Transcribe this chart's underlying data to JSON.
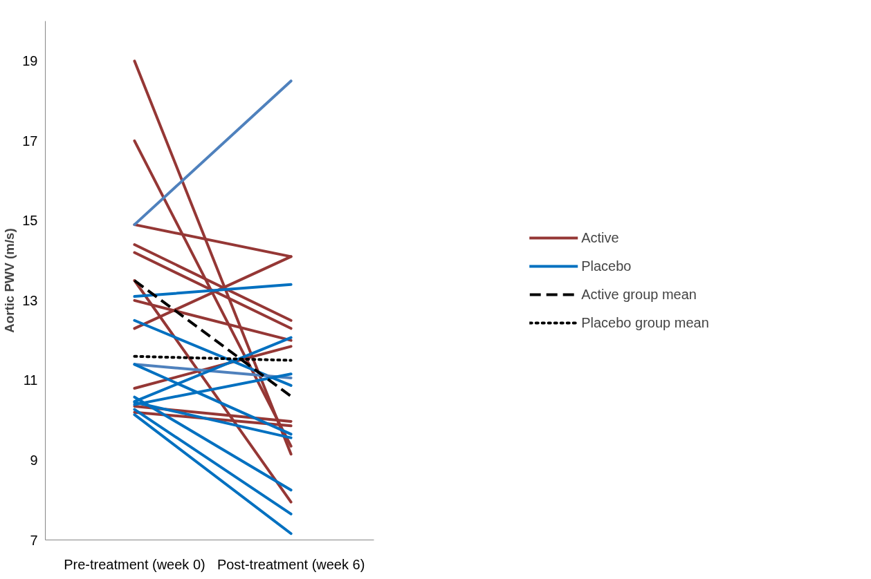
{
  "chart_data": {
    "type": "line",
    "ylabel": "Aortic PWV (m/s)",
    "categories": [
      "Pre-treatment (week 0)",
      "Post-treatment (week 6)"
    ],
    "ylim": [
      7,
      20
    ],
    "yticks": [
      7,
      9,
      11,
      13,
      15,
      17,
      19
    ],
    "grid": false,
    "legend": "right",
    "marker": "none",
    "series": [
      {
        "name": "Active",
        "color": "#953735",
        "values": [
          14.9,
          14.1
        ]
      },
      {
        "color": "#953735",
        "values": [
          19.0,
          9.15
        ]
      },
      {
        "color": "#953735",
        "values": [
          17.0,
          9.35
        ]
      },
      {
        "color": "#953735",
        "values": [
          14.4,
          12.5
        ]
      },
      {
        "color": "#953735",
        "values": [
          14.2,
          12.3
        ]
      },
      {
        "color": "#953735",
        "values": [
          13.5,
          7.95
        ]
      },
      {
        "color": "#953735",
        "values": [
          13.0,
          12.0
        ]
      },
      {
        "color": "#953735",
        "values": [
          12.3,
          14.1
        ]
      },
      {
        "color": "#953735",
        "values": [
          10.8,
          11.85
        ]
      },
      {
        "color": "#953735",
        "values": [
          10.35,
          9.97
        ]
      },
      {
        "color": "#953735",
        "values": [
          10.2,
          9.86
        ]
      },
      {
        "name": "Placebo",
        "color": "#0070c0",
        "values": [
          13.1,
          13.4
        ]
      },
      {
        "color": "#4f81bd",
        "values": [
          14.9,
          18.5
        ]
      },
      {
        "color": "#0070c0",
        "values": [
          12.5,
          10.87
        ]
      },
      {
        "color": "#4f81bd",
        "values": [
          11.4,
          11.06
        ]
      },
      {
        "color": "#0070c0",
        "values": [
          11.4,
          9.65
        ]
      },
      {
        "color": "#0070c0",
        "values": [
          10.58,
          8.25
        ]
      },
      {
        "color": "#0070c0",
        "values": [
          10.47,
          12.07
        ]
      },
      {
        "color": "#0070c0",
        "values": [
          10.39,
          11.16
        ]
      },
      {
        "color": "#0070c0",
        "values": [
          10.45,
          9.56
        ]
      },
      {
        "color": "#0070c0",
        "values": [
          10.27,
          7.65
        ]
      },
      {
        "color": "#0070c0",
        "values": [
          10.14,
          7.16
        ]
      },
      {
        "name": "Active group mean",
        "color": "#000000",
        "line_style": "dashed",
        "values": [
          13.5,
          10.6
        ]
      },
      {
        "name": "Placebo group mean",
        "color": "#000000",
        "line_style": "dotted",
        "values": [
          11.6,
          11.5
        ]
      }
    ]
  }
}
